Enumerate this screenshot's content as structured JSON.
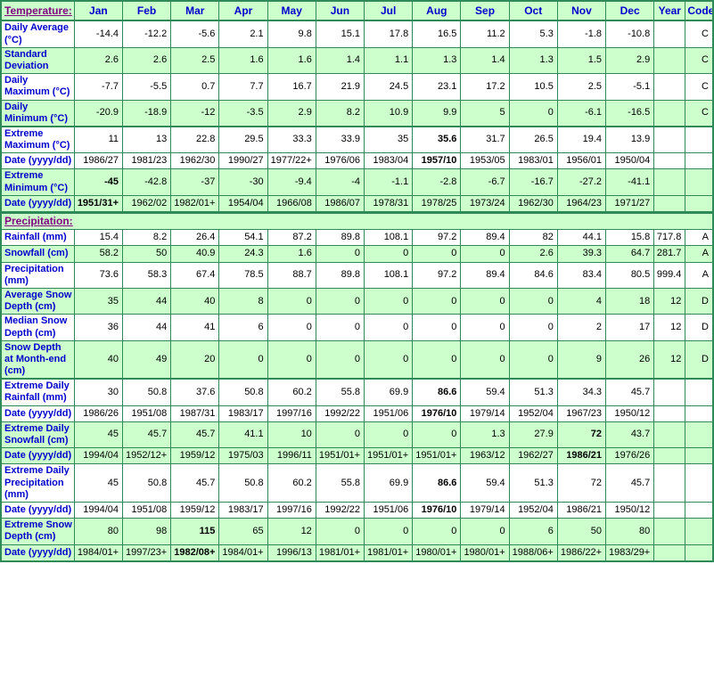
{
  "colors": {
    "row_green": "#ccffcc",
    "row_white": "#ffffff",
    "border_green": "#2e8b57",
    "label_blue": "#0000cc",
    "section_purple": "#800080",
    "value_black": "#000000"
  },
  "table": {
    "temperature_header": "Temperature:",
    "precipitation_header": "Precipitation:",
    "months": [
      "Jan",
      "Feb",
      "Mar",
      "Apr",
      "May",
      "Jun",
      "Jul",
      "Aug",
      "Sep",
      "Oct",
      "Nov",
      "Dec"
    ],
    "year_header": "Year",
    "code_header": "Code",
    "temperature_rows": [
      {
        "label": "Daily Average (°C)",
        "bg": "white",
        "values": [
          "-14.4",
          "-12.2",
          "-5.6",
          "2.1",
          "9.8",
          "15.1",
          "17.8",
          "16.5",
          "11.2",
          "5.3",
          "-1.8",
          "-10.8"
        ],
        "year": "",
        "code": "C"
      },
      {
        "label": "Standard Deviation",
        "bg": "green",
        "values": [
          "2.6",
          "2.6",
          "2.5",
          "1.6",
          "1.6",
          "1.4",
          "1.1",
          "1.3",
          "1.4",
          "1.3",
          "1.5",
          "2.9"
        ],
        "year": "",
        "code": "C"
      },
      {
        "label": "Daily Maximum (°C)",
        "bg": "white",
        "values": [
          "-7.7",
          "-5.5",
          "0.7",
          "7.7",
          "16.7",
          "21.9",
          "24.5",
          "23.1",
          "17.2",
          "10.5",
          "2.5",
          "-5.1"
        ],
        "year": "",
        "code": "C"
      },
      {
        "label": "Daily Minimum (°C)",
        "bg": "green",
        "values": [
          "-20.9",
          "-18.9",
          "-12",
          "-3.5",
          "2.9",
          "8.2",
          "10.9",
          "9.9",
          "5",
          "0",
          "-6.1",
          "-16.5"
        ],
        "year": "",
        "code": "C"
      },
      {
        "label": "Extreme Maximum (°C)",
        "bg": "white",
        "group_start": true,
        "bold": 7,
        "values": [
          "11",
          "13",
          "22.8",
          "29.5",
          "33.3",
          "33.9",
          "35",
          "35.6",
          "31.7",
          "26.5",
          "19.4",
          "13.9"
        ],
        "year": "",
        "code": ""
      },
      {
        "label": "Date (yyyy/dd)",
        "bg": "white",
        "bold": 7,
        "values": [
          "1986/27",
          "1981/23",
          "1962/30",
          "1990/27",
          "1977/22+",
          "1976/06",
          "1983/04",
          "1957/10",
          "1953/05",
          "1983/01",
          "1956/01",
          "1950/04"
        ],
        "year": "",
        "code": ""
      },
      {
        "label": "Extreme Minimum (°C)",
        "bg": "green",
        "bold": 0,
        "values": [
          "-45",
          "-42.8",
          "-37",
          "-30",
          "-9.4",
          "-4",
          "-1.1",
          "-2.8",
          "-6.7",
          "-16.7",
          "-27.2",
          "-41.1"
        ],
        "year": "",
        "code": ""
      },
      {
        "label": "Date (yyyy/dd)",
        "bg": "green",
        "bold": 0,
        "values": [
          "1951/31+",
          "1962/02",
          "1982/01+",
          "1954/04",
          "1966/08",
          "1986/07",
          "1978/31",
          "1978/25",
          "1973/24",
          "1962/30",
          "1964/23",
          "1971/27"
        ],
        "year": "",
        "code": ""
      }
    ],
    "precipitation_rows": [
      {
        "label": "Rainfall (mm)",
        "bg": "white",
        "values": [
          "15.4",
          "8.2",
          "26.4",
          "54.1",
          "87.2",
          "89.8",
          "108.1",
          "97.2",
          "89.4",
          "82",
          "44.1",
          "15.8"
        ],
        "year": "717.8",
        "code": "A"
      },
      {
        "label": "Snowfall (cm)",
        "bg": "green",
        "values": [
          "58.2",
          "50",
          "40.9",
          "24.3",
          "1.6",
          "0",
          "0",
          "0",
          "0",
          "2.6",
          "39.3",
          "64.7"
        ],
        "year": "281.7",
        "code": "A"
      },
      {
        "label": "Precipitation (mm)",
        "bg": "white",
        "values": [
          "73.6",
          "58.3",
          "67.4",
          "78.5",
          "88.7",
          "89.8",
          "108.1",
          "97.2",
          "89.4",
          "84.6",
          "83.4",
          "80.5"
        ],
        "year": "999.4",
        "code": "A"
      },
      {
        "label": "Average Snow Depth (cm)",
        "bg": "green",
        "values": [
          "35",
          "44",
          "40",
          "8",
          "0",
          "0",
          "0",
          "0",
          "0",
          "0",
          "4",
          "18"
        ],
        "year": "12",
        "code": "D"
      },
      {
        "label": "Median Snow Depth (cm)",
        "bg": "white",
        "values": [
          "36",
          "44",
          "41",
          "6",
          "0",
          "0",
          "0",
          "0",
          "0",
          "0",
          "2",
          "17"
        ],
        "year": "12",
        "code": "D"
      },
      {
        "label": "Snow Depth at Month-end (cm)",
        "bg": "green",
        "values": [
          "40",
          "49",
          "20",
          "0",
          "0",
          "0",
          "0",
          "0",
          "0",
          "0",
          "9",
          "26"
        ],
        "year": "12",
        "code": "D"
      },
      {
        "label": "Extreme Daily Rainfall (mm)",
        "bg": "white",
        "group_start": true,
        "bold": 7,
        "values": [
          "30",
          "50.8",
          "37.6",
          "50.8",
          "60.2",
          "55.8",
          "69.9",
          "86.6",
          "59.4",
          "51.3",
          "34.3",
          "45.7"
        ],
        "year": "",
        "code": ""
      },
      {
        "label": "Date (yyyy/dd)",
        "bg": "white",
        "bold": 7,
        "values": [
          "1986/26",
          "1951/08",
          "1987/31",
          "1983/17",
          "1997/16",
          "1992/22",
          "1951/06",
          "1976/10",
          "1979/14",
          "1952/04",
          "1967/23",
          "1950/12"
        ],
        "year": "",
        "code": ""
      },
      {
        "label": "Extreme Daily Snowfall (cm)",
        "bg": "green",
        "bold": 10,
        "values": [
          "45",
          "45.7",
          "45.7",
          "41.1",
          "10",
          "0",
          "0",
          "0",
          "1.3",
          "27.9",
          "72",
          "43.7"
        ],
        "year": "",
        "code": ""
      },
      {
        "label": "Date (yyyy/dd)",
        "bg": "green",
        "bold": 10,
        "values": [
          "1994/04",
          "1952/12+",
          "1959/12",
          "1975/03",
          "1996/11",
          "1951/01+",
          "1951/01+",
          "1951/01+",
          "1963/12",
          "1962/27",
          "1986/21",
          "1976/26"
        ],
        "year": "",
        "code": ""
      },
      {
        "label": "Extreme Daily Precipitation (mm)",
        "bg": "white",
        "bold": 7,
        "values": [
          "45",
          "50.8",
          "45.7",
          "50.8",
          "60.2",
          "55.8",
          "69.9",
          "86.6",
          "59.4",
          "51.3",
          "72",
          "45.7"
        ],
        "year": "",
        "code": ""
      },
      {
        "label": "Date (yyyy/dd)",
        "bg": "white",
        "bold": 7,
        "values": [
          "1994/04",
          "1951/08",
          "1959/12",
          "1983/17",
          "1997/16",
          "1992/22",
          "1951/06",
          "1976/10",
          "1979/14",
          "1952/04",
          "1986/21",
          "1950/12"
        ],
        "year": "",
        "code": ""
      },
      {
        "label": "Extreme Snow Depth (cm)",
        "bg": "green",
        "bold": 2,
        "values": [
          "80",
          "98",
          "115",
          "65",
          "12",
          "0",
          "0",
          "0",
          "0",
          "6",
          "50",
          "80"
        ],
        "year": "",
        "code": ""
      },
      {
        "label": "Date (yyyy/dd)",
        "bg": "green",
        "bold": 2,
        "values": [
          "1984/01+",
          "1997/23+",
          "1982/08+",
          "1984/01+",
          "1996/13",
          "1981/01+",
          "1981/01+",
          "1980/01+",
          "1980/01+",
          "1988/06+",
          "1986/22+",
          "1983/29+"
        ],
        "year": "",
        "code": ""
      }
    ]
  }
}
